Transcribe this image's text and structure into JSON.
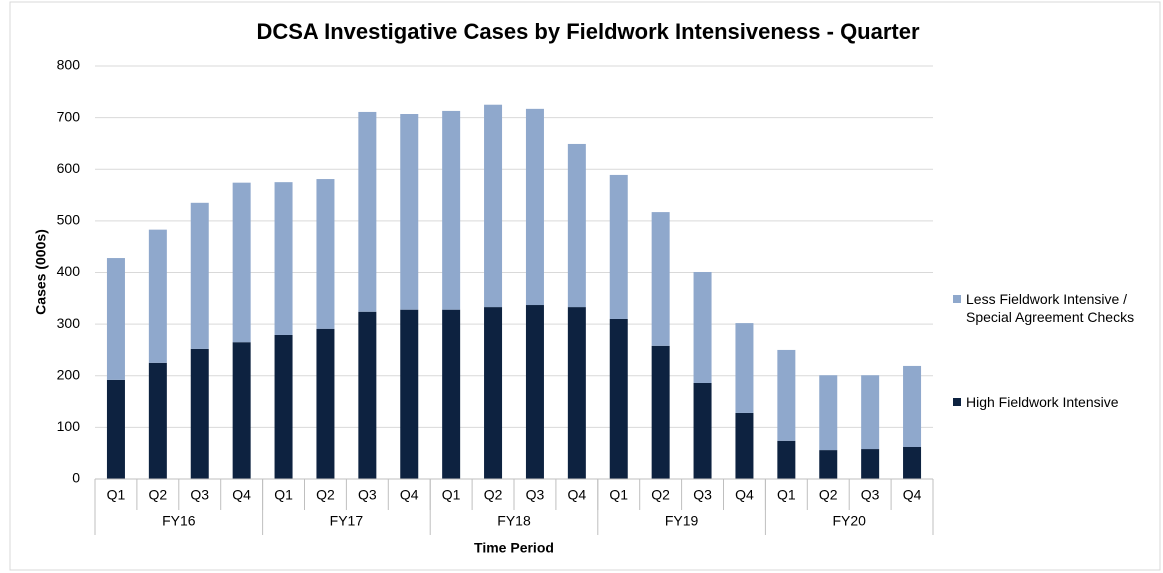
{
  "chart_data": {
    "type": "stacked_bar",
    "title": "DCSA Investigative Cases by Fieldwork Intensiveness - Quarter",
    "x_label": "Time Period",
    "y_label": "Cases (000s)",
    "categories": [
      "Q1",
      "Q2",
      "Q3",
      "Q4",
      "Q1",
      "Q2",
      "Q3",
      "Q4",
      "Q1",
      "Q2",
      "Q3",
      "Q4",
      "Q1",
      "Q2",
      "Q3",
      "Q4",
      "Q1",
      "Q2",
      "Q3",
      "Q4"
    ],
    "groups": [
      "FY16",
      "FY17",
      "FY18",
      "FY19",
      "FY20"
    ],
    "series": [
      {
        "name": "High Fieldwork Intensive",
        "color": "#0d2240",
        "values": [
          192,
          225,
          252,
          265,
          279,
          291,
          324,
          328,
          328,
          333,
          337,
          333,
          310,
          258,
          186,
          128,
          74,
          56,
          58,
          62
        ]
      },
      {
        "name": "Less Fieldwork Intensive / Special Agreement Checks",
        "color": "#8fa8cc",
        "values": [
          236,
          258,
          283,
          309,
          296,
          290,
          387,
          379,
          385,
          392,
          380,
          316,
          279,
          259,
          215,
          174,
          176,
          145,
          143,
          157
        ]
      }
    ],
    "ylim": [
      0,
      800
    ],
    "yticks": [
      0,
      100,
      200,
      300,
      400,
      500,
      600,
      700,
      800
    ],
    "grid": true,
    "legend": "right"
  }
}
